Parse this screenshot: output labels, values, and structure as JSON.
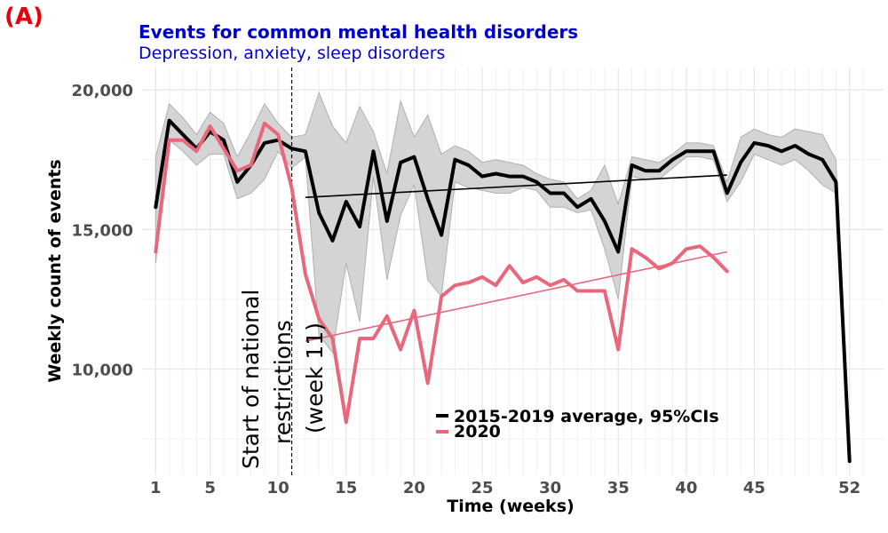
{
  "chart_data": {
    "type": "line",
    "panel_label": "(A)",
    "title": "Events for common mental health disorders",
    "subtitle": "Depression, anxiety, sleep disorders",
    "xlabel": "Time (weeks)",
    "ylabel": "Weekly count of events",
    "xlim": [
      0,
      54.5
    ],
    "ylim": [
      6200,
      20800
    ],
    "x_ticks": [
      1,
      5,
      10,
      15,
      20,
      25,
      30,
      35,
      40,
      45,
      52
    ],
    "y_ticks": [
      10000,
      15000,
      20000
    ],
    "y_tick_labels": [
      "10,000",
      "15,000",
      "20,000"
    ],
    "grid": true,
    "legend_position": "bottom-center",
    "colors": {
      "average": "#000000",
      "y2020": "#e8677b",
      "ci_fill": "#d4d4d4",
      "ci_edge": "#b0b0b0"
    },
    "annotation": {
      "x": 11,
      "line1": "Start of national",
      "line2": "restrictions",
      "line3": "(week 11)"
    },
    "series": [
      {
        "name": "2015-2019 average, 95%CIs",
        "x": [
          1,
          2,
          3,
          4,
          5,
          6,
          7,
          8,
          9,
          10,
          11,
          12,
          13,
          14,
          15,
          16,
          17,
          18,
          19,
          20,
          21,
          22,
          23,
          24,
          25,
          26,
          27,
          28,
          29,
          30,
          31,
          32,
          33,
          34,
          35,
          36,
          37,
          38,
          39,
          40,
          41,
          42,
          43,
          44,
          45,
          46,
          47,
          48,
          49,
          50,
          51,
          52
        ],
        "values": [
          15800,
          18900,
          18400,
          17900,
          18500,
          18200,
          16700,
          17300,
          18100,
          18200,
          17900,
          17800,
          15600,
          14600,
          16000,
          15100,
          17800,
          15300,
          17400,
          17600,
          16100,
          14800,
          17500,
          17300,
          16900,
          17000,
          16900,
          16900,
          16700,
          16300,
          16300,
          15800,
          16100,
          15300,
          14200,
          17300,
          17100,
          17100,
          17500,
          17800,
          17800,
          17800,
          16300,
          17400,
          18100,
          18000,
          17800,
          18000,
          17700,
          17500,
          16700,
          6700
        ],
        "ci_lower": [
          13800,
          18200,
          17800,
          17300,
          17700,
          17700,
          16100,
          16300,
          16800,
          17800,
          17200,
          17600,
          11200,
          10600,
          13800,
          11700,
          16900,
          13200,
          15500,
          16600,
          13200,
          12600,
          16700,
          16500,
          16400,
          16300,
          16300,
          16500,
          16400,
          15800,
          15800,
          15600,
          15700,
          14300,
          12500,
          16900,
          16800,
          16800,
          17200,
          17600,
          17600,
          17500,
          16000,
          16700,
          17700,
          17500,
          17300,
          17500,
          17100,
          16600,
          16300,
          6700
        ],
        "ci_upper": [
          17600,
          19500,
          19000,
          18400,
          19200,
          18800,
          17600,
          18500,
          19500,
          18800,
          18300,
          18400,
          19900,
          18700,
          18100,
          19400,
          18500,
          17000,
          19600,
          18300,
          19100,
          17700,
          18000,
          17800,
          17400,
          17500,
          17400,
          17300,
          17000,
          16800,
          16700,
          16100,
          16400,
          17300,
          15900,
          17600,
          17500,
          17400,
          17700,
          18100,
          18100,
          18000,
          16700,
          18300,
          18600,
          18400,
          18300,
          18600,
          18500,
          18400,
          17500,
          6700
        ],
        "trend": {
          "x": [
            12,
            43
          ],
          "y": [
            16150,
            16950
          ]
        }
      },
      {
        "name": "2020",
        "x": [
          1,
          2,
          3,
          4,
          5,
          6,
          7,
          8,
          9,
          10,
          11,
          12,
          13,
          14,
          15,
          16,
          17,
          18,
          19,
          20,
          21,
          22,
          23,
          24,
          25,
          26,
          27,
          28,
          29,
          30,
          31,
          32,
          33,
          34,
          35,
          36,
          37,
          38,
          39,
          40,
          41,
          42,
          43
        ],
        "values": [
          14200,
          18200,
          18200,
          17800,
          18700,
          17900,
          17100,
          17300,
          18800,
          18400,
          16500,
          13400,
          11800,
          11100,
          8100,
          11100,
          11100,
          11900,
          10700,
          12100,
          9500,
          12600,
          13000,
          13100,
          13300,
          13000,
          13700,
          13100,
          13300,
          13000,
          13200,
          12800,
          12800,
          12800,
          10700,
          14300,
          14000,
          13600,
          13800,
          14300,
          14400,
          14000,
          13500
        ],
        "trend": {
          "x": [
            12,
            43
          ],
          "y": [
            11000,
            14200
          ]
        }
      }
    ]
  }
}
